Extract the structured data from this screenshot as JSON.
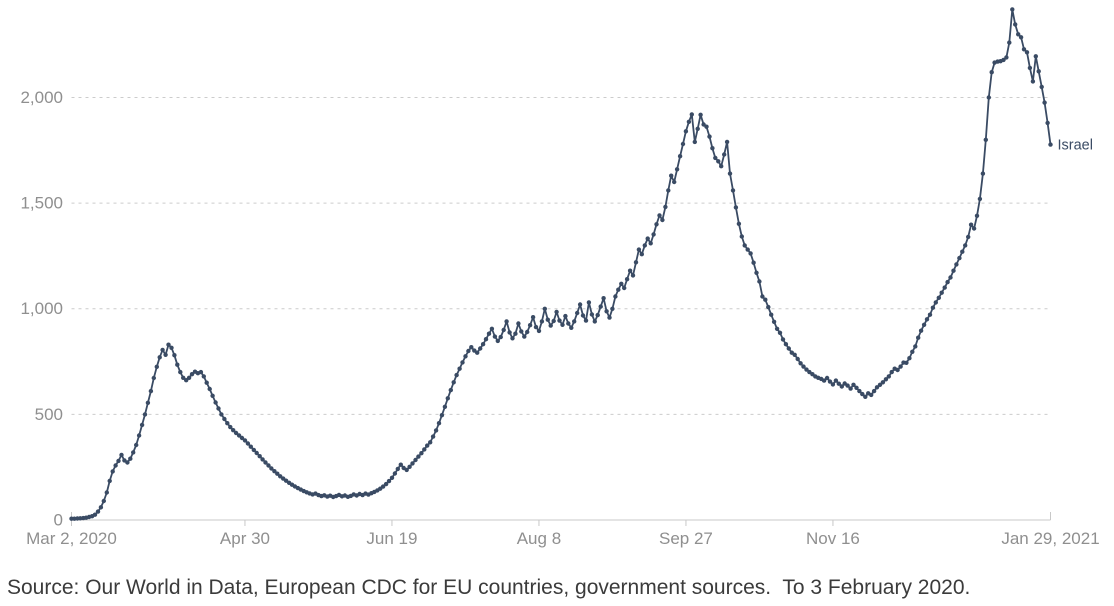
{
  "chart": {
    "end_label": "Israel",
    "line_color": "#3a4b64",
    "grid_color": "#cccccc",
    "axis_color": "#c8c8c8",
    "axis_label_color": "#8f8f8f",
    "source_color": "#3b3b3b",
    "source_note": "Source: Our World in Data, European CDC for EU countries, government sources.  To 3 February 2020."
  },
  "chart_data": {
    "type": "line",
    "title": "",
    "xlabel": "",
    "ylabel": "",
    "grid": true,
    "legend_position": "end-of-line",
    "x_start": "Mar 2, 2020",
    "x_end": "Jan 29, 2021",
    "x_tick_indices": [
      0,
      59,
      109,
      159,
      209,
      259,
      333
    ],
    "x_tick_labels": [
      "Mar 2, 2020",
      "Apr 30",
      "Jun 19",
      "Aug 8",
      "Sep 27",
      "Nov 16",
      "Jan 29, 2021"
    ],
    "y_ticks": [
      0,
      500,
      1000,
      1500,
      2000
    ],
    "y_tick_labels": [
      "0",
      "500",
      "1,000",
      "1,500",
      "2,000"
    ],
    "ylim": [
      0,
      2460
    ],
    "series": [
      {
        "name": "Israel",
        "values": [
          6,
          6,
          7,
          8,
          9,
          11,
          14,
          18,
          25,
          40,
          60,
          90,
          130,
          185,
          230,
          258,
          280,
          308,
          282,
          272,
          290,
          320,
          355,
          400,
          450,
          500,
          555,
          610,
          672,
          725,
          770,
          805,
          782,
          830,
          815,
          780,
          735,
          700,
          673,
          662,
          673,
          690,
          702,
          695,
          700,
          680,
          650,
          620,
          588,
          556,
          528,
          500,
          478,
          458,
          440,
          425,
          412,
          400,
          388,
          377,
          362,
          347,
          332,
          317,
          302,
          287,
          272,
          258,
          244,
          231,
          219,
          207,
          196,
          186,
          176,
          167,
          159,
          151,
          144,
          137,
          131,
          126,
          121,
          125,
          118,
          113,
          117,
          111,
          115,
          109,
          113,
          119,
          112,
          116,
          110,
          114,
          121,
          116,
          123,
          118,
          125,
          120,
          127,
          133,
          140,
          148,
          158,
          170,
          184,
          200,
          220,
          242,
          262,
          246,
          237,
          252,
          268,
          284,
          300,
          316,
          334,
          352,
          368,
          395,
          424,
          458,
          496,
          536,
          576,
          615,
          652,
          686,
          716,
          746,
          775,
          800,
          818,
          802,
          792,
          812,
          832,
          856,
          882,
          905,
          868,
          848,
          866,
          900,
          940,
          888,
          860,
          882,
          930,
          893,
          868,
          890,
          922,
          960,
          913,
          895,
          940,
          1000,
          948,
          920,
          942,
          985,
          944,
          924,
          965,
          930,
          910,
          940,
          980,
          1020,
          968,
          944,
          1030,
          973,
          940,
          970,
          1010,
          1050,
          988,
          958,
          1000,
          1058,
          1090,
          1118,
          1098,
          1140,
          1180,
          1158,
          1220,
          1280,
          1258,
          1300,
          1332,
          1310,
          1352,
          1400,
          1442,
          1420,
          1482,
          1560,
          1630,
          1600,
          1660,
          1722,
          1780,
          1840,
          1885,
          1920,
          1790,
          1852,
          1918,
          1872,
          1862,
          1815,
          1760,
          1714,
          1698,
          1675,
          1730,
          1790,
          1640,
          1560,
          1480,
          1402,
          1342,
          1300,
          1280,
          1262,
          1218,
          1170,
          1129,
          1058,
          1043,
          1008,
          972,
          938,
          905,
          886,
          855,
          832,
          812,
          792,
          782,
          762,
          742,
          726,
          712,
          700,
          690,
          680,
          673,
          668,
          660,
          672,
          655,
          642,
          660,
          645,
          632,
          646,
          636,
          622,
          640,
          626,
          610,
          596,
          583,
          600,
          592,
          610,
          628,
          640,
          652,
          666,
          680,
          700,
          716,
          710,
          726,
          745,
          744,
          766,
          796,
          822,
          863,
          896,
          924,
          950,
          972,
          1005,
          1030,
          1052,
          1076,
          1100,
          1126,
          1148,
          1180,
          1210,
          1240,
          1270,
          1300,
          1340,
          1398,
          1380,
          1440,
          1520,
          1640,
          1800,
          2000,
          2120,
          2165,
          2170,
          2172,
          2178,
          2190,
          2260,
          2417,
          2346,
          2299,
          2285,
          2228,
          2214,
          2140,
          2076,
          2195,
          2124,
          2050,
          1976,
          1880,
          1777
        ]
      }
    ]
  }
}
